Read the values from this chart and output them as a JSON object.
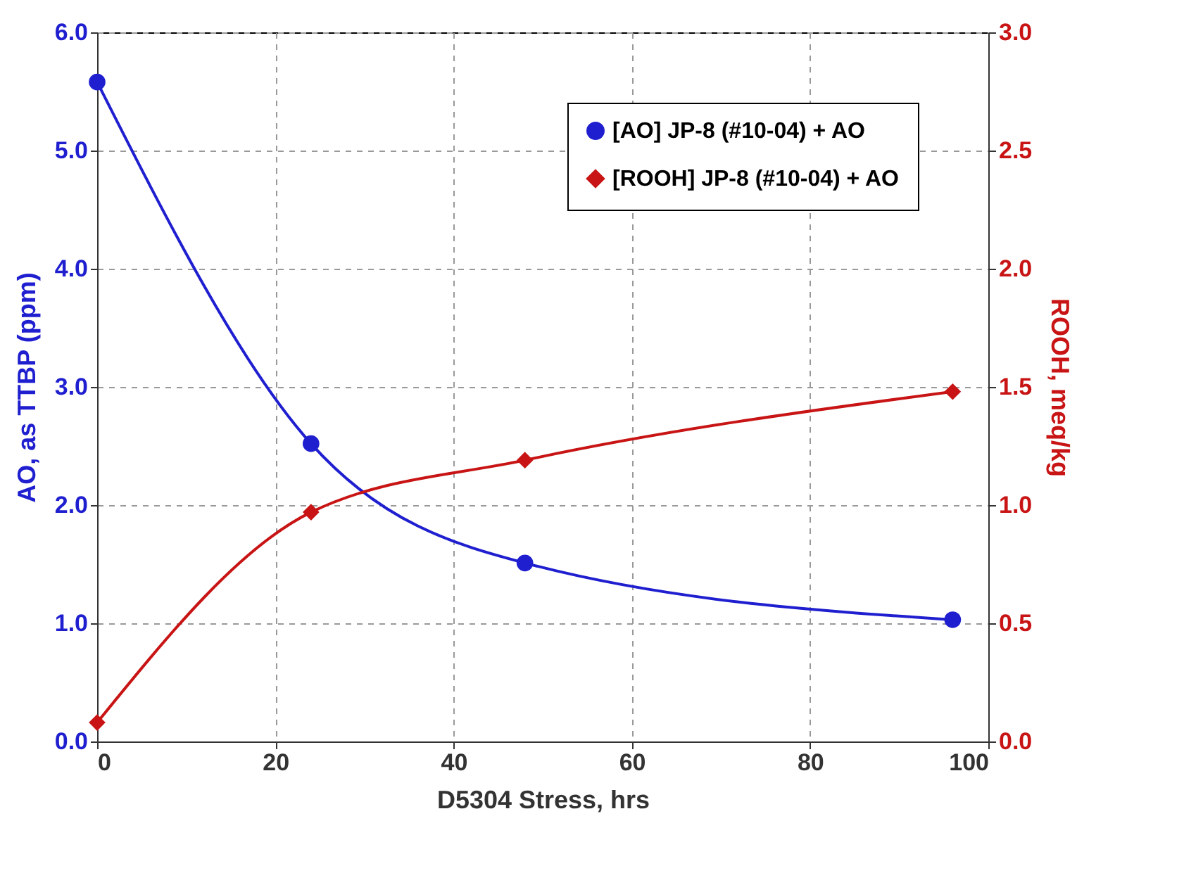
{
  "chart_data": {
    "type": "line",
    "xlabel": "D5304 Stress, hrs",
    "ylabel": "AO, as TTBP (ppm)",
    "y2label": "ROOH, meq/kg",
    "x": [
      0,
      24,
      48,
      96
    ],
    "series": [
      {
        "name": "[AO] JP-8 (#10-04) + AO",
        "color": "#1f1fd0",
        "marker": "circle",
        "values": [
          5.58,
          2.52,
          1.51,
          1.03
        ]
      },
      {
        "name": "[ROOH] JP-8 (#10-04) + AO",
        "color": "#c81414",
        "marker": "diamond",
        "axis": "y2",
        "values": [
          0.08,
          0.97,
          1.19,
          1.48
        ]
      }
    ],
    "xlim": [
      0,
      100
    ],
    "xticks": [
      0,
      20,
      40,
      60,
      80,
      100
    ],
    "ylim": [
      0,
      6
    ],
    "yticks": [
      {
        "value": 0,
        "label": "0.0"
      },
      {
        "value": 1,
        "label": "1.0"
      },
      {
        "value": 2,
        "label": "2.0"
      },
      {
        "value": 3,
        "label": "3.0"
      },
      {
        "value": 4,
        "label": "4.0"
      },
      {
        "value": 5,
        "label": "5.0"
      },
      {
        "value": 6,
        "label": "6.0"
      }
    ],
    "y2lim": [
      0,
      3
    ],
    "y2ticks": [
      {
        "value": 0,
        "label": "0.0"
      },
      {
        "value": 0.5,
        "label": "0.5"
      },
      {
        "value": 1,
        "label": "1.0"
      },
      {
        "value": 1.5,
        "label": "1.5"
      },
      {
        "value": 2,
        "label": "2.0"
      },
      {
        "value": 2.5,
        "label": "2.5"
      },
      {
        "value": 3,
        "label": "3.0"
      }
    ],
    "grid": true,
    "legend": "top right",
    "line_style": "solid"
  }
}
